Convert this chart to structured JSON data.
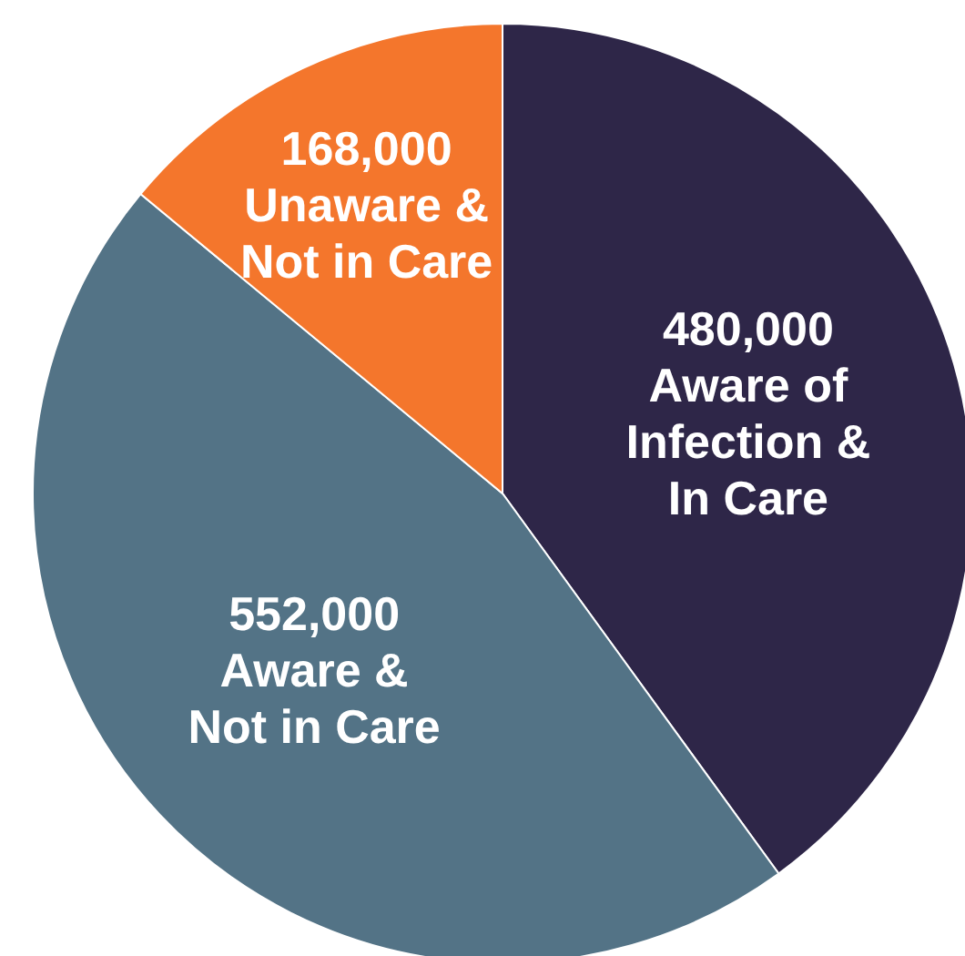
{
  "chart_data": {
    "type": "pie",
    "categories": [
      "Aware of Infection & In Care",
      "Aware & Not in Care",
      "Unaware & Not in Care"
    ],
    "values": [
      480000,
      552000,
      168000
    ],
    "value_labels": [
      "480,000",
      "552,000",
      "168,000"
    ],
    "colors": [
      "#2e2648",
      "#537386",
      "#f4762c"
    ],
    "legend": false
  }
}
